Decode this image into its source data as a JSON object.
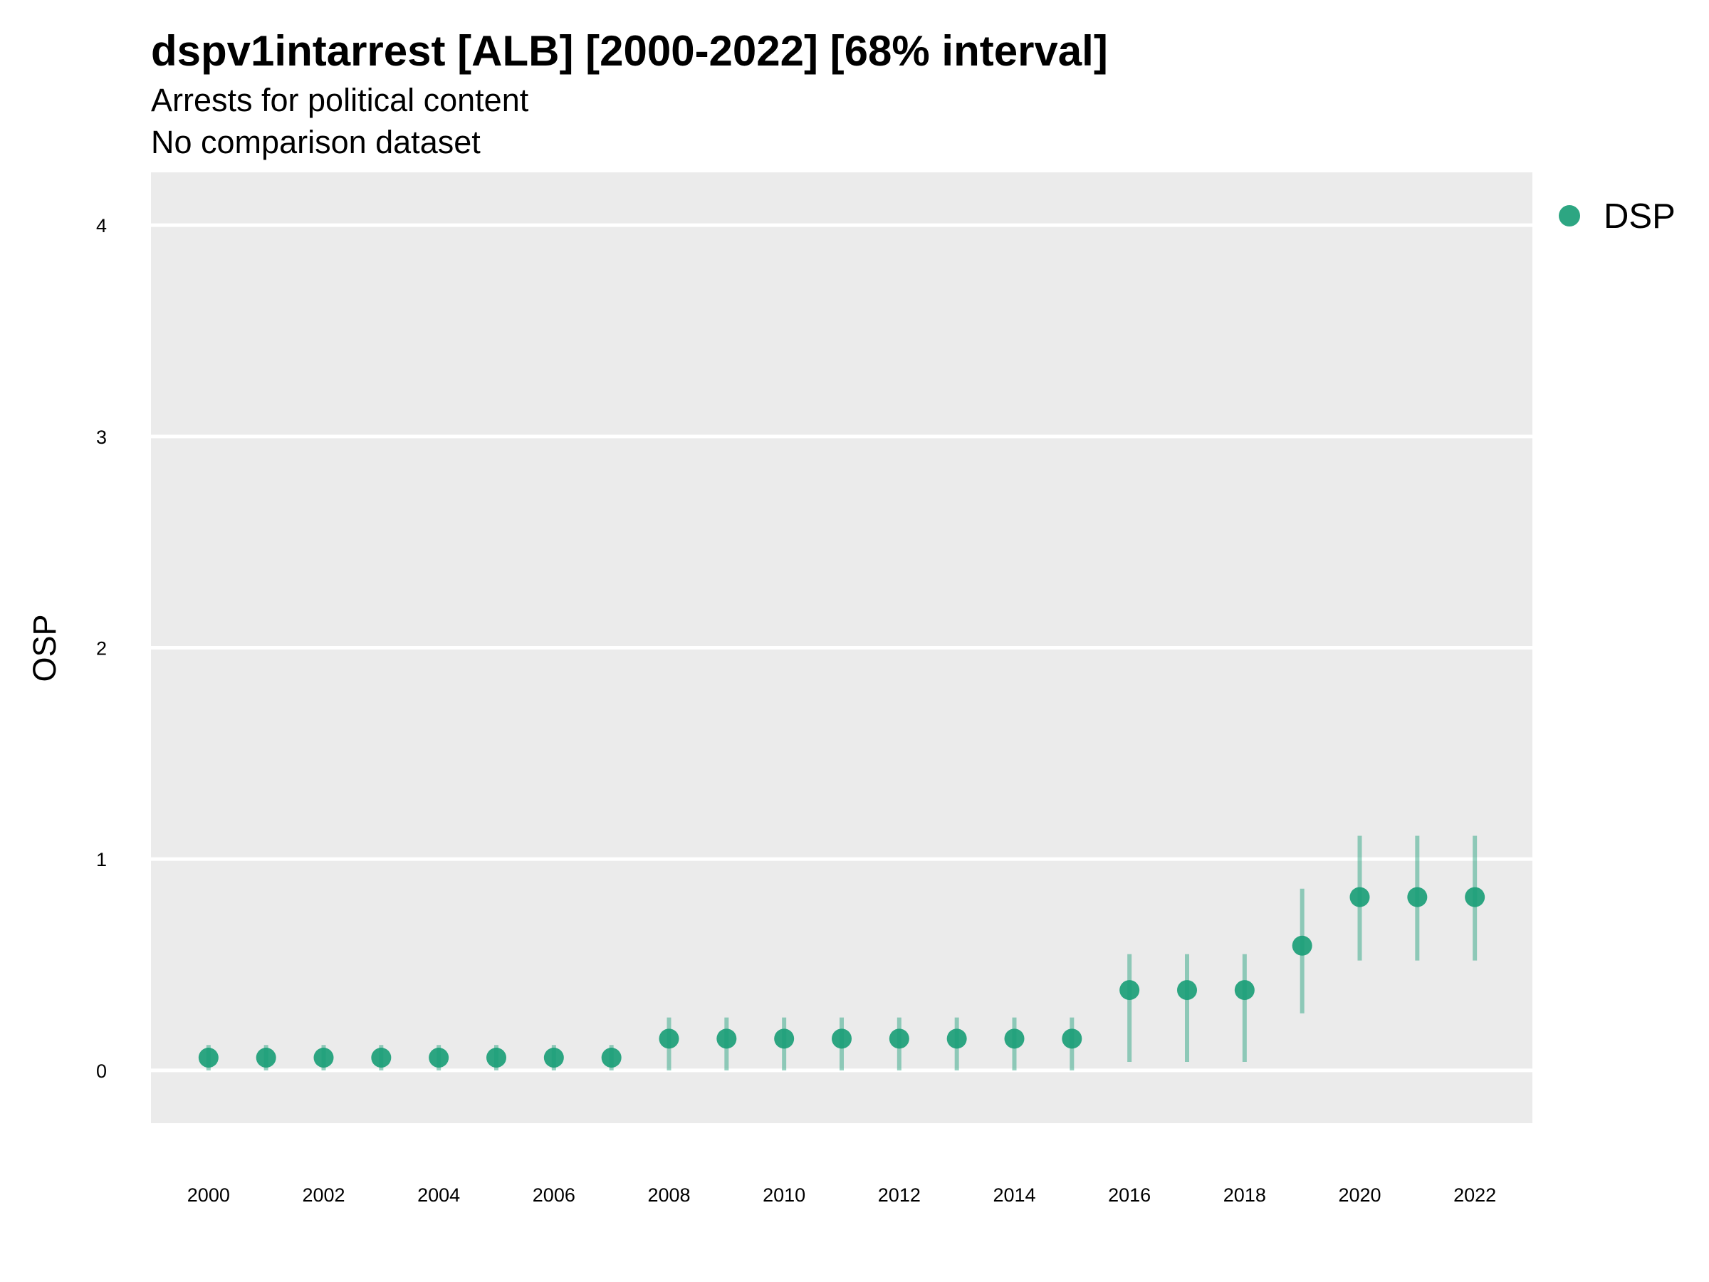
{
  "chart_data": {
    "type": "scatter",
    "title": "dspv1intarrest [ALB] [2000-2022] [68% interval]",
    "subtitle": "Arrests for political content",
    "caption": "No comparison dataset",
    "xlabel": "",
    "ylabel": "OSP",
    "ylim": [
      -0.25,
      4.25
    ],
    "xlim": [
      1999,
      2023
    ],
    "yticks": [
      0,
      1,
      2,
      3,
      4
    ],
    "xticks": [
      2000,
      2002,
      2004,
      2006,
      2008,
      2010,
      2012,
      2014,
      2016,
      2018,
      2020,
      2022
    ],
    "grid": true,
    "legend_position": "right",
    "series": [
      {
        "name": "DSP",
        "color": "#1b9e77",
        "points": [
          {
            "x": 2000,
            "y": 0.06,
            "lo": 0.0,
            "hi": 0.12
          },
          {
            "x": 2001,
            "y": 0.06,
            "lo": 0.0,
            "hi": 0.12
          },
          {
            "x": 2002,
            "y": 0.06,
            "lo": 0.0,
            "hi": 0.12
          },
          {
            "x": 2003,
            "y": 0.06,
            "lo": 0.0,
            "hi": 0.12
          },
          {
            "x": 2004,
            "y": 0.06,
            "lo": 0.0,
            "hi": 0.12
          },
          {
            "x": 2005,
            "y": 0.06,
            "lo": 0.0,
            "hi": 0.12
          },
          {
            "x": 2006,
            "y": 0.06,
            "lo": 0.0,
            "hi": 0.12
          },
          {
            "x": 2007,
            "y": 0.06,
            "lo": 0.0,
            "hi": 0.12
          },
          {
            "x": 2008,
            "y": 0.15,
            "lo": 0.0,
            "hi": 0.25
          },
          {
            "x": 2009,
            "y": 0.15,
            "lo": 0.0,
            "hi": 0.25
          },
          {
            "x": 2010,
            "y": 0.15,
            "lo": 0.0,
            "hi": 0.25
          },
          {
            "x": 2011,
            "y": 0.15,
            "lo": 0.0,
            "hi": 0.25
          },
          {
            "x": 2012,
            "y": 0.15,
            "lo": 0.0,
            "hi": 0.25
          },
          {
            "x": 2013,
            "y": 0.15,
            "lo": 0.0,
            "hi": 0.25
          },
          {
            "x": 2014,
            "y": 0.15,
            "lo": 0.0,
            "hi": 0.25
          },
          {
            "x": 2015,
            "y": 0.15,
            "lo": 0.0,
            "hi": 0.25
          },
          {
            "x": 2016,
            "y": 0.38,
            "lo": 0.04,
            "hi": 0.55
          },
          {
            "x": 2017,
            "y": 0.38,
            "lo": 0.04,
            "hi": 0.55
          },
          {
            "x": 2018,
            "y": 0.38,
            "lo": 0.04,
            "hi": 0.55
          },
          {
            "x": 2019,
            "y": 0.59,
            "lo": 0.27,
            "hi": 0.86
          },
          {
            "x": 2020,
            "y": 0.82,
            "lo": 0.52,
            "hi": 1.11
          },
          {
            "x": 2021,
            "y": 0.82,
            "lo": 0.52,
            "hi": 1.11
          },
          {
            "x": 2022,
            "y": 0.82,
            "lo": 0.52,
            "hi": 1.11
          }
        ]
      }
    ]
  },
  "colors": {
    "panel_background": "#ebebeb",
    "gridline": "#ffffff",
    "point": "#1b9e77",
    "interval": "#1b9e77"
  }
}
